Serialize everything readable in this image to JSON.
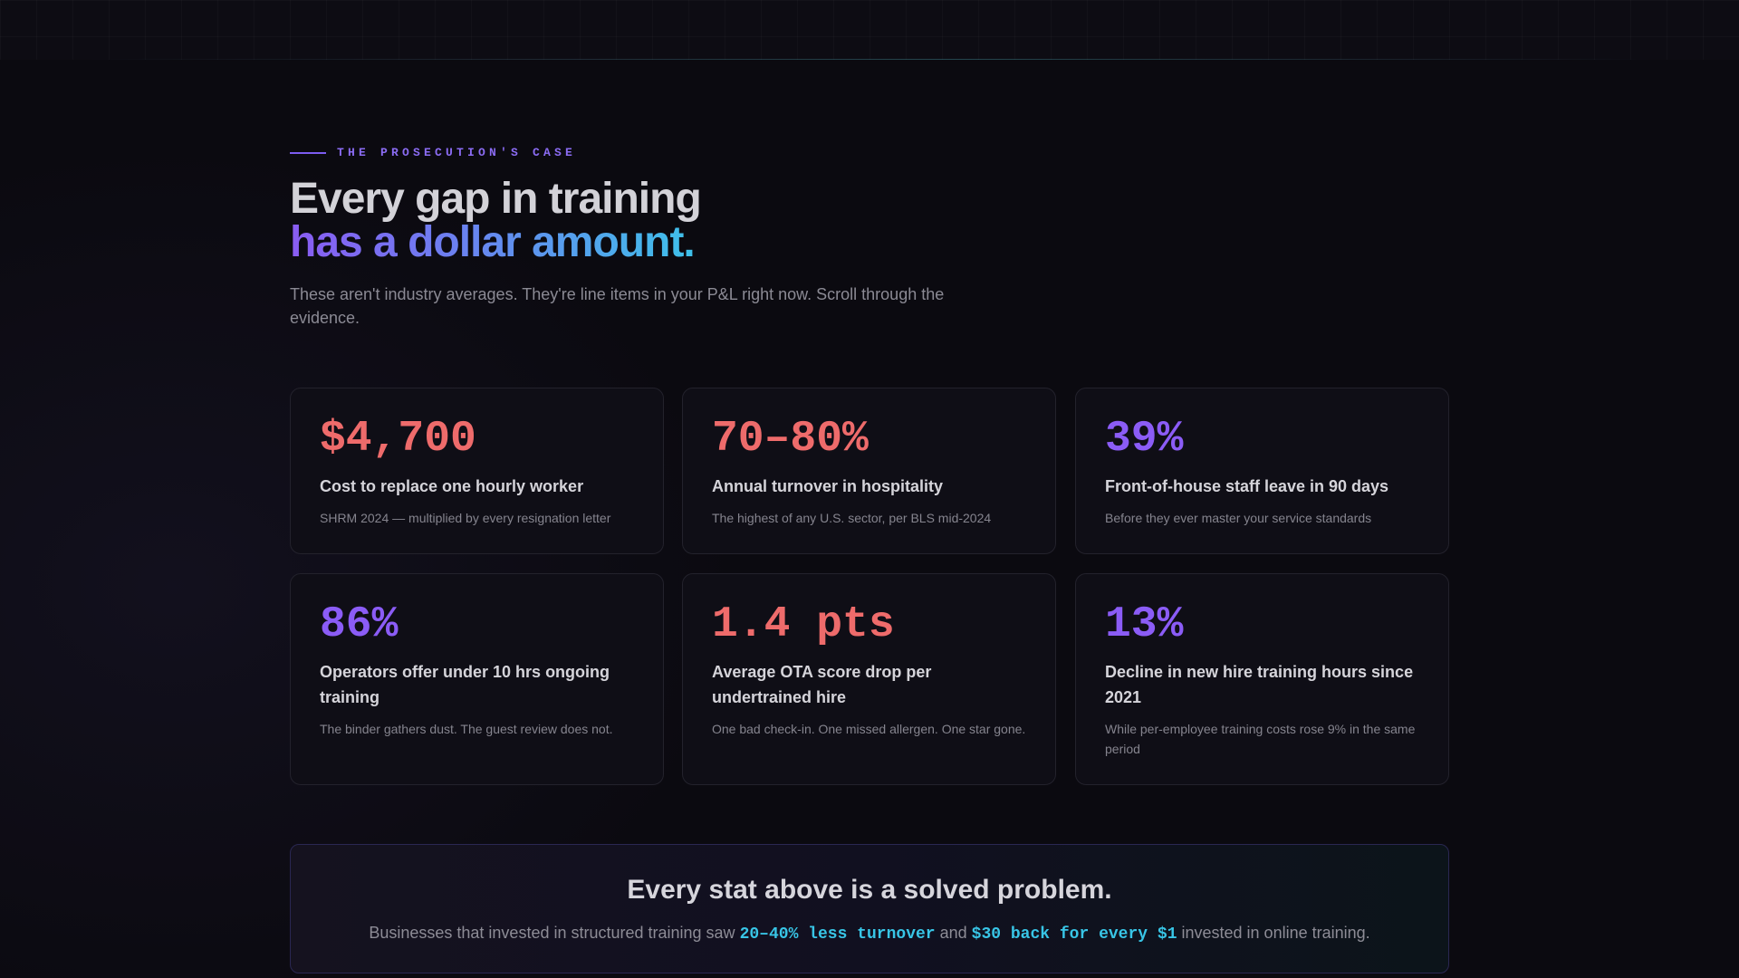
{
  "hero": {
    "eyebrow": "THE PROSECUTION'S CASE",
    "headline_line1": "Every gap in training",
    "headline_line2": "has a dollar amount.",
    "subhead": "These aren't industry averages. They're line items in your P&L right now. Scroll through the evidence."
  },
  "stats": [
    {
      "value": "$4,700",
      "title": "Cost to replace one hourly worker",
      "note": "SHRM 2024 — multiplied by every resignation letter",
      "accent": "#ee6b6b"
    },
    {
      "value": "70–80%",
      "title": "Annual turnover in hospitality",
      "note": "The highest of any U.S. sector, per BLS mid-2024",
      "accent": "#ee6b6b"
    },
    {
      "value": "39%",
      "title": "Front-of-house staff leave in 90 days",
      "note": "Before they ever master your service standards",
      "accent": "#8b5cf6"
    },
    {
      "value": "86%",
      "title": "Operators offer under 10 hrs ongoing training",
      "note": "The binder gathers dust. The guest review does not.",
      "accent": "#8b5cf6"
    },
    {
      "value": "1.4 pts",
      "title": "Average OTA score drop per undertrained hire",
      "note": "One bad check-in. One missed allergen. One star gone.",
      "accent": "#ee6b6b"
    },
    {
      "value": "13%",
      "title": "Decline in new hire training hours since 2021",
      "note": "While per-employee training costs rose 9% in the same period",
      "accent": "#8b5cf6"
    }
  ],
  "callout": {
    "title": "Every stat above is a solved problem.",
    "body_pre": "Businesses that invested in structured training saw ",
    "highlight1": "20–40% less turnover",
    "body_mid": " and ",
    "highlight2": "$30 back for every $1",
    "body_post": " invested in online training."
  }
}
